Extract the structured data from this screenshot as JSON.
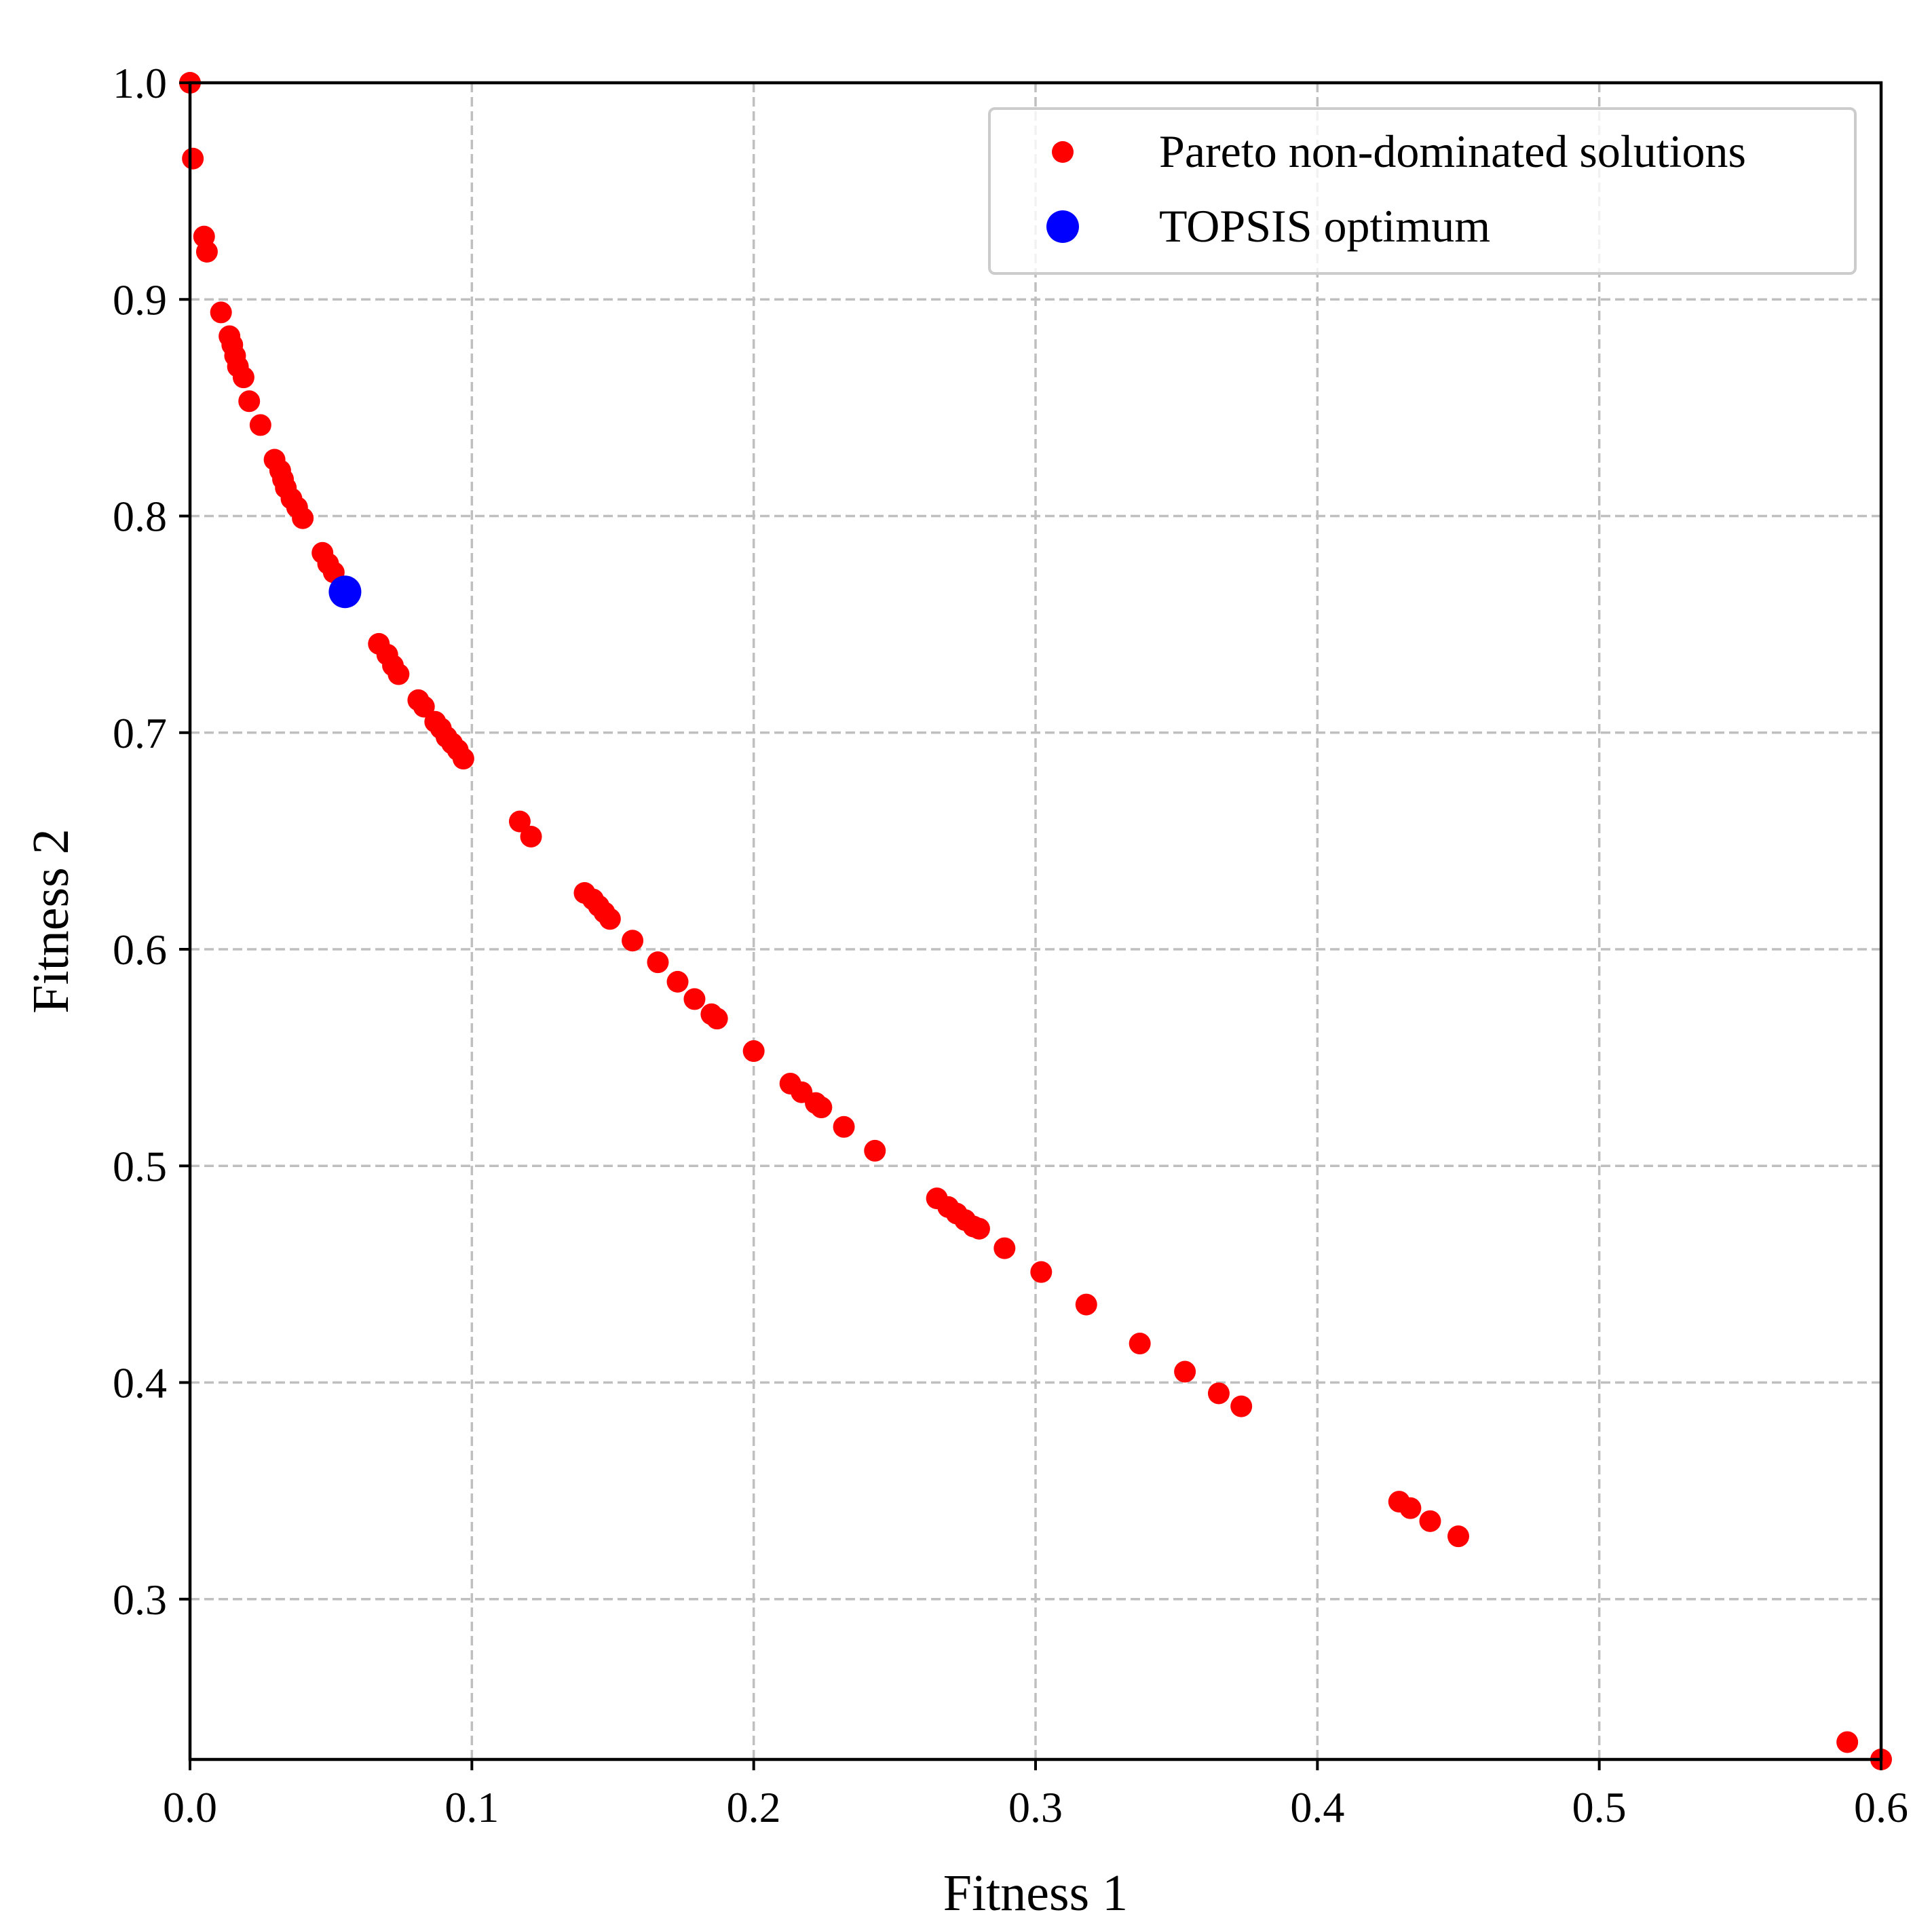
{
  "chart_data": {
    "type": "scatter",
    "title": "",
    "xlabel": "Fitness 1",
    "ylabel": "Fitness 2",
    "xlim": [
      0.0,
      0.6
    ],
    "ylim": [
      0.226,
      1.0
    ],
    "x_ticks": [
      "0.0",
      "0.1",
      "0.2",
      "0.3",
      "0.4",
      "0.5",
      "0.6"
    ],
    "y_ticks": [
      "0.3",
      "0.4",
      "0.5",
      "0.6",
      "0.7",
      "0.8",
      "0.9",
      "1.0"
    ],
    "grid": true,
    "legend_position": "upper right",
    "series": [
      {
        "name": "Pareto non-dominated solutions",
        "color": "#ff0000",
        "marker": "circle",
        "points": [
          [
            0.0,
            1.0
          ],
          [
            0.001,
            0.965
          ],
          [
            0.005,
            0.929
          ],
          [
            0.006,
            0.922
          ],
          [
            0.011,
            0.894
          ],
          [
            0.014,
            0.883
          ],
          [
            0.015,
            0.879
          ],
          [
            0.016,
            0.874
          ],
          [
            0.017,
            0.869
          ],
          [
            0.019,
            0.864
          ],
          [
            0.021,
            0.853
          ],
          [
            0.025,
            0.842
          ],
          [
            0.03,
            0.826
          ],
          [
            0.032,
            0.821
          ],
          [
            0.033,
            0.817
          ],
          [
            0.034,
            0.813
          ],
          [
            0.036,
            0.808
          ],
          [
            0.038,
            0.804
          ],
          [
            0.04,
            0.799
          ],
          [
            0.047,
            0.783
          ],
          [
            0.049,
            0.778
          ],
          [
            0.051,
            0.774
          ],
          [
            0.067,
            0.741
          ],
          [
            0.07,
            0.736
          ],
          [
            0.072,
            0.731
          ],
          [
            0.074,
            0.727
          ],
          [
            0.081,
            0.715
          ],
          [
            0.083,
            0.712
          ],
          [
            0.087,
            0.705
          ],
          [
            0.089,
            0.702
          ],
          [
            0.091,
            0.698
          ],
          [
            0.093,
            0.695
          ],
          [
            0.095,
            0.692
          ],
          [
            0.097,
            0.688
          ],
          [
            0.117,
            0.659
          ],
          [
            0.121,
            0.652
          ],
          [
            0.14,
            0.626
          ],
          [
            0.143,
            0.623
          ],
          [
            0.145,
            0.62
          ],
          [
            0.147,
            0.617
          ],
          [
            0.149,
            0.614
          ],
          [
            0.157,
            0.604
          ],
          [
            0.166,
            0.594
          ],
          [
            0.173,
            0.585
          ],
          [
            0.179,
            0.577
          ],
          [
            0.185,
            0.57
          ],
          [
            0.187,
            0.568
          ],
          [
            0.2,
            0.553
          ],
          [
            0.213,
            0.538
          ],
          [
            0.217,
            0.534
          ],
          [
            0.222,
            0.529
          ],
          [
            0.224,
            0.527
          ],
          [
            0.232,
            0.518
          ],
          [
            0.243,
            0.507
          ],
          [
            0.265,
            0.485
          ],
          [
            0.269,
            0.481
          ],
          [
            0.272,
            0.478
          ],
          [
            0.275,
            0.475
          ],
          [
            0.278,
            0.472
          ],
          [
            0.28,
            0.471
          ],
          [
            0.289,
            0.462
          ],
          [
            0.302,
            0.451
          ],
          [
            0.318,
            0.436
          ],
          [
            0.337,
            0.418
          ],
          [
            0.353,
            0.405
          ],
          [
            0.365,
            0.395
          ],
          [
            0.373,
            0.389
          ],
          [
            0.429,
            0.345
          ],
          [
            0.433,
            0.342
          ],
          [
            0.44,
            0.336
          ],
          [
            0.45,
            0.329
          ],
          [
            0.588,
            0.234
          ],
          [
            0.6,
            0.226
          ]
        ]
      },
      {
        "name": "TOPSIS optimum",
        "color": "#0000ff",
        "marker": "circle",
        "points": [
          [
            0.055,
            0.765
          ]
        ]
      }
    ]
  }
}
